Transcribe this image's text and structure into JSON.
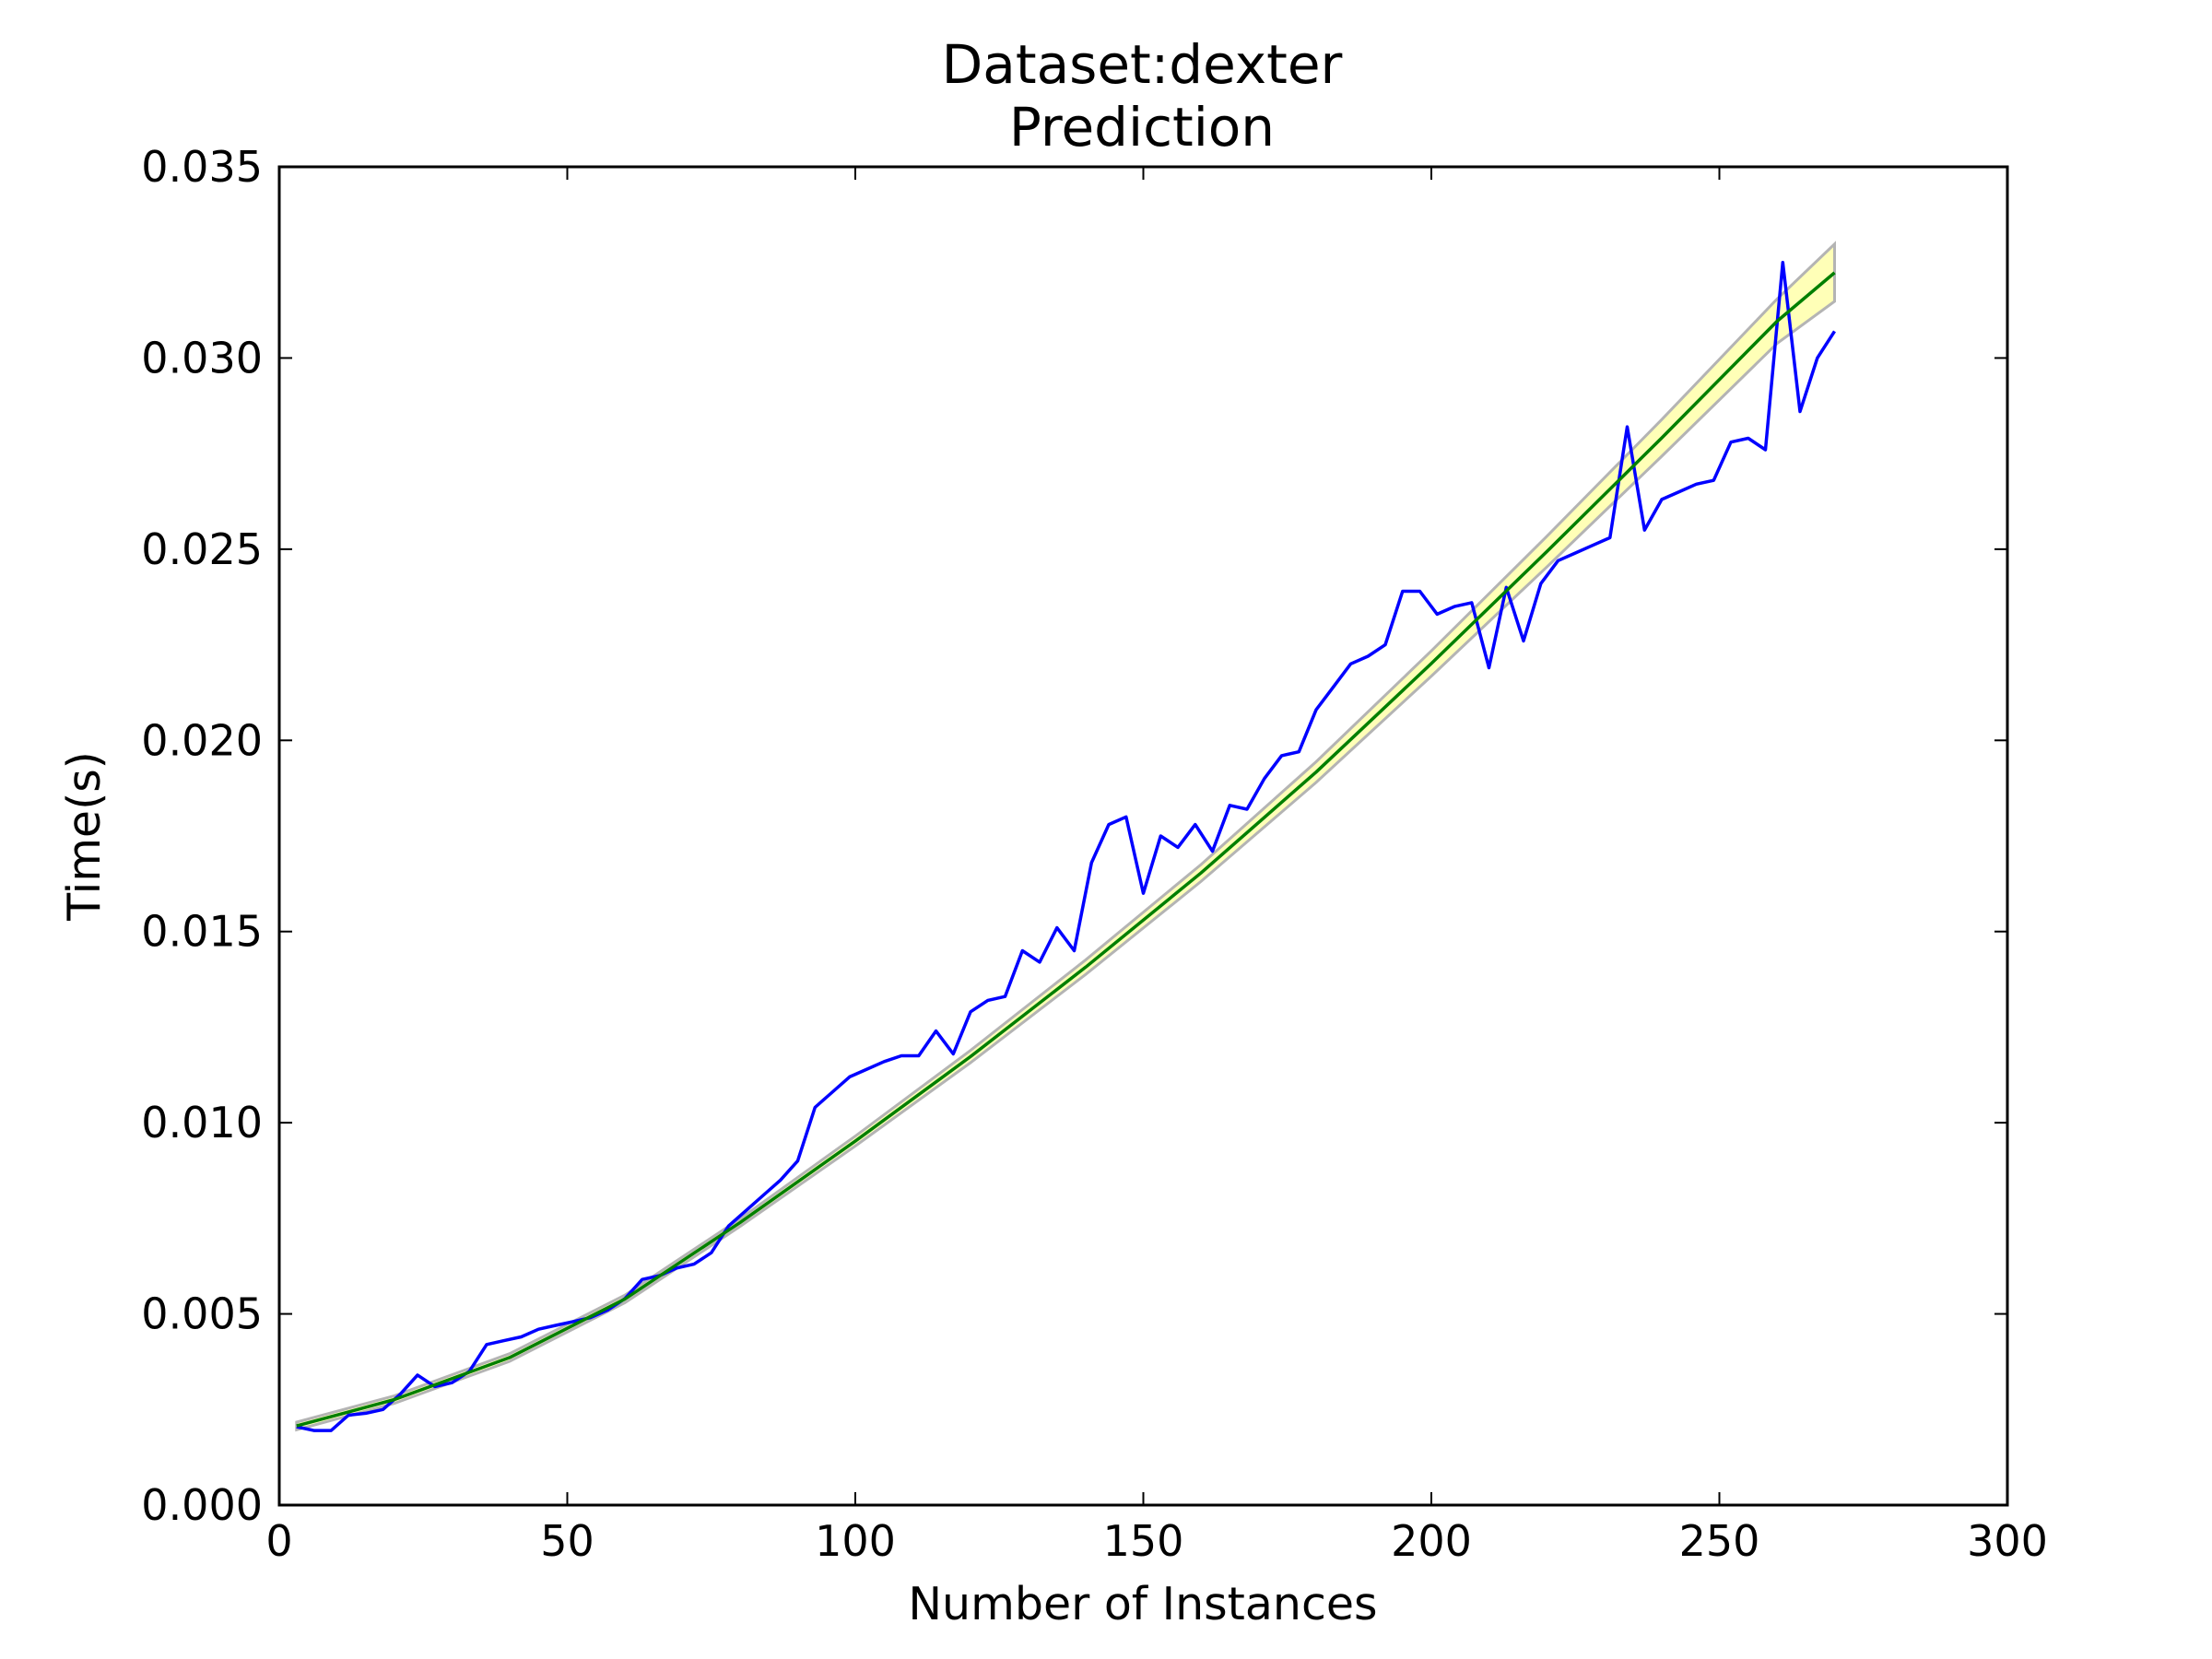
{
  "chart_data": {
    "type": "line",
    "title": "Dataset:dexter",
    "subtitle": "Prediction",
    "xlabel": "Number of Instances",
    "ylabel": "Time(s)",
    "xlim": [
      0,
      300
    ],
    "ylim": [
      0,
      0.035
    ],
    "xticks": [
      0,
      50,
      100,
      150,
      200,
      250,
      300
    ],
    "xtick_labels": [
      "0",
      "50",
      "100",
      "150",
      "200",
      "250",
      "300"
    ],
    "yticks": [
      0,
      0.005,
      0.01,
      0.015,
      0.02,
      0.025,
      0.03,
      0.035
    ],
    "ytick_labels": [
      "0.000",
      "0.005",
      "0.010",
      "0.015",
      "0.020",
      "0.025",
      "0.030",
      "0.035"
    ],
    "grid": false,
    "colors": {
      "measured": "#0000ff",
      "fit": "#007f00",
      "band_fill": "#ffff9f",
      "band_edge": "#b4b4b4",
      "axes": "#000000"
    },
    "series": [
      {
        "x": [
          3,
          6,
          9,
          12,
          15,
          18,
          21,
          24,
          27,
          30,
          33,
          36,
          39,
          42,
          45,
          48,
          51,
          54,
          57,
          60,
          63,
          66,
          69,
          72,
          75,
          78,
          81,
          84,
          87,
          90,
          93,
          96,
          99,
          102,
          105,
          108,
          111,
          114,
          117,
          120,
          123,
          126,
          129,
          132,
          135,
          138,
          141,
          144,
          147,
          150,
          153,
          156,
          159,
          162,
          165,
          168,
          171,
          174,
          177,
          180,
          183,
          186,
          189,
          192,
          195,
          198,
          201,
          204,
          207,
          210,
          213,
          216,
          219,
          222,
          225,
          228,
          231,
          234,
          237,
          240,
          243,
          246,
          249,
          252,
          255,
          258,
          261,
          264,
          267,
          270
        ],
        "values": [
          0.00205,
          0.00195,
          0.00195,
          0.00235,
          0.0024,
          0.0025,
          0.0029,
          0.0034,
          0.0031,
          0.0032,
          0.0035,
          0.0042,
          0.0043,
          0.0044,
          0.0046,
          0.0047,
          0.0048,
          0.0049,
          0.0051,
          0.0054,
          0.0059,
          0.006,
          0.0062,
          0.0063,
          0.0066,
          0.0073,
          0.0077,
          0.0081,
          0.0085,
          0.009,
          0.0104,
          0.0108,
          0.0112,
          0.0114,
          0.0116,
          0.01175,
          0.01175,
          0.0124,
          0.0118,
          0.0129,
          0.0132,
          0.0133,
          0.0145,
          0.0142,
          0.0151,
          0.0145,
          0.0168,
          0.0178,
          0.018,
          0.016,
          0.0175,
          0.0172,
          0.0178,
          0.0171,
          0.0183,
          0.0182,
          0.019,
          0.0196,
          0.0197,
          0.0208,
          0.0214,
          0.022,
          0.0222,
          0.0225,
          0.0239,
          0.0239,
          0.0233,
          0.0235,
          0.0236,
          0.0219,
          0.024,
          0.0226,
          0.0241,
          0.0247,
          0.0249,
          0.0251,
          0.0253,
          0.0282,
          0.0255,
          0.0263,
          0.0265,
          0.0267,
          0.0268,
          0.0278,
          0.0279,
          0.0276,
          0.0325,
          0.0286,
          0.03,
          0.0307
        ]
      },
      {
        "x": [
          3,
          20,
          40,
          60,
          80,
          100,
          120,
          140,
          160,
          180,
          200,
          220,
          240,
          260,
          270
        ],
        "values": [
          0.00207,
          0.00276,
          0.00386,
          0.00539,
          0.00739,
          0.00952,
          0.01173,
          0.01407,
          0.01653,
          0.01917,
          0.02201,
          0.02493,
          0.02791,
          0.03096,
          0.03223
        ],
        "band_halfwidth": [
          0.0001,
          0.0001,
          0.0001,
          0.0001,
          0.0001,
          0.00013,
          0.00016,
          0.00019,
          0.00022,
          0.00027,
          0.00033,
          0.0004,
          0.00048,
          0.00058,
          0.00075
        ]
      }
    ]
  }
}
